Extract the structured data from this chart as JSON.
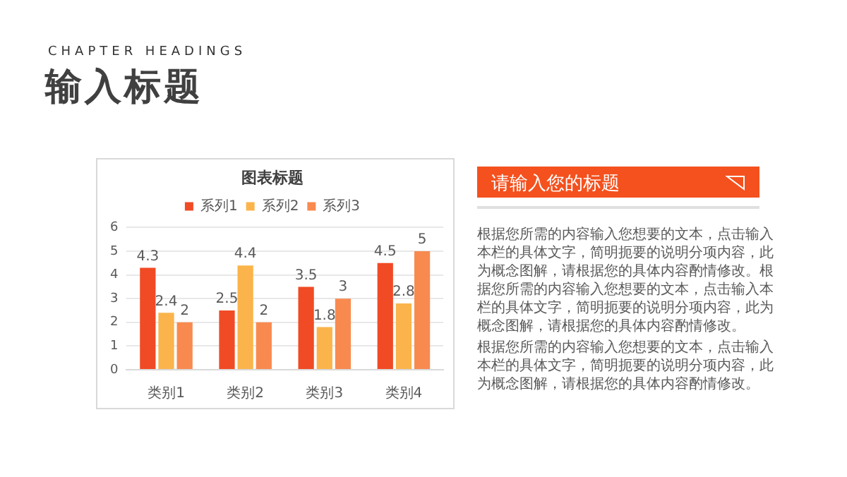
{
  "chart_data": {
    "type": "bar",
    "title": "图表标题",
    "categories": [
      "类别1",
      "类别2",
      "类别3",
      "类别4"
    ],
    "series": [
      {
        "name": "系列1",
        "color": "#f04b25",
        "values": [
          4.3,
          2.5,
          3.5,
          4.5
        ]
      },
      {
        "name": "系列2",
        "color": "#fbb44b",
        "values": [
          2.4,
          4.4,
          1.8,
          2.8
        ]
      },
      {
        "name": "系列3",
        "color": "#f98a4f",
        "values": [
          2,
          2,
          3,
          5
        ]
      }
    ],
    "ylim": [
      0,
      6
    ],
    "yticks": [
      0,
      1,
      2,
      3,
      4,
      5,
      6
    ],
    "grid": "y",
    "legend": "top",
    "data_labels": true,
    "annotations": [
      "CHAPTER HEADINGS",
      "输入标题",
      "请输入您的标题",
      "根据您所需的内容输入您想要的文本，点击输入本栏的具体文字，简明扼要的说明分项内容，此为概念图解，请根据您的具体内容酌情修改。根据您所需的内容输入您想要的文本，点击输入本栏的具体文字，简明扼要的说明分项内容，此为概念图解，请根据您的具体内容酌情修改。",
      "根据您所需的内容输入您想要的文本，点击输入本栏的具体文字，简明扼要的说明分项内容，此为概念图解，请根据您的具体内容酌情修改。"
    ]
  }
}
